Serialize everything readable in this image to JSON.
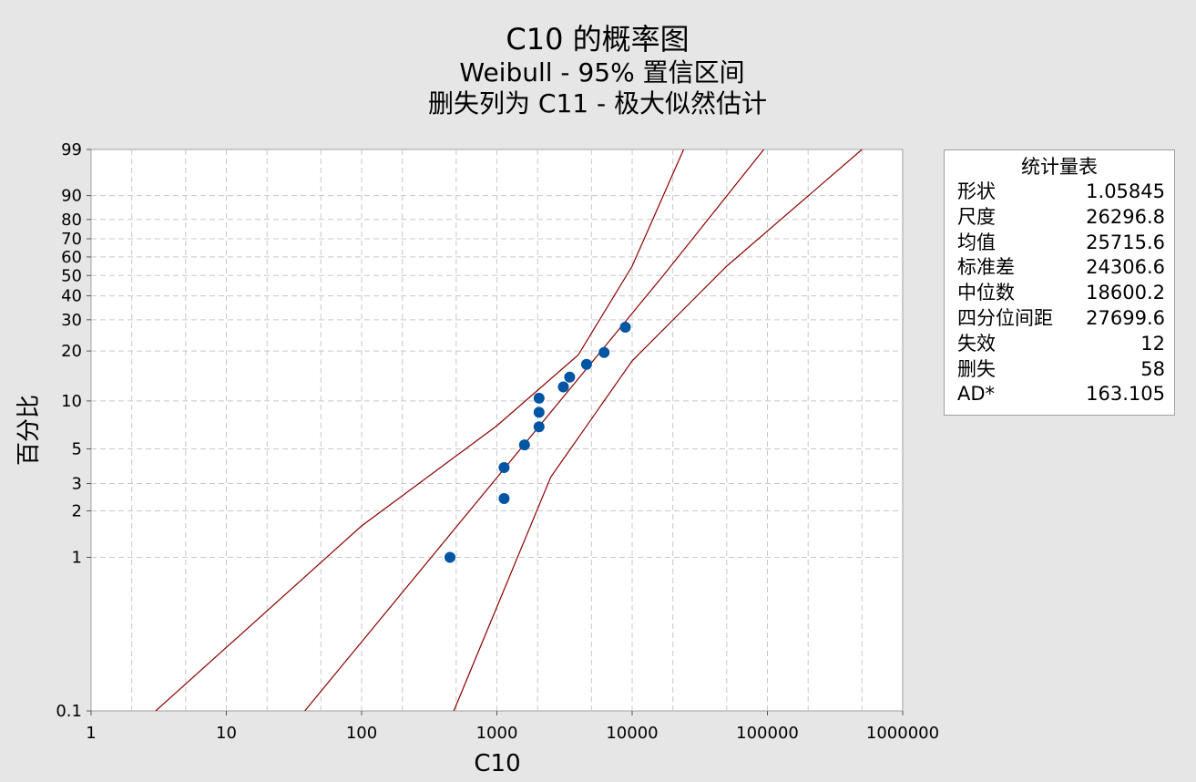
{
  "chart_data": {
    "type": "scatter",
    "title": "C10 的概率图",
    "subtitle1": "Weibull - 95% 置信区间",
    "subtitle2": "删失列为 C11 - 极大似然估计",
    "xlabel": "C10",
    "ylabel": "百分比",
    "x_scale": "log",
    "y_scale": "weibull",
    "xlim": [
      1,
      1000000
    ],
    "ylim": [
      0.1,
      99
    ],
    "x_ticks": [
      "1",
      "10",
      "100",
      "1000",
      "10000",
      "100000",
      "1000000"
    ],
    "y_ticks": [
      "0.1",
      "1",
      "2",
      "3",
      "5",
      "10",
      "20",
      "30",
      "40",
      "50",
      "60",
      "70",
      "80",
      "90",
      "99"
    ],
    "grid": true,
    "points": [
      {
        "x": 450,
        "y": 1.0
      },
      {
        "x": 1130,
        "y": 2.4
      },
      {
        "x": 1130,
        "y": 3.8
      },
      {
        "x": 1600,
        "y": 5.3
      },
      {
        "x": 2050,
        "y": 6.9
      },
      {
        "x": 2050,
        "y": 8.5
      },
      {
        "x": 2050,
        "y": 10.4
      },
      {
        "x": 3100,
        "y": 12.2
      },
      {
        "x": 3450,
        "y": 14.0
      },
      {
        "x": 4600,
        "y": 16.7
      },
      {
        "x": 6200,
        "y": 19.6
      },
      {
        "x": 8900,
        "y": 27.3
      }
    ],
    "fit_line": [
      {
        "x": 38,
        "y": 0.1
      },
      {
        "x": 17000,
        "y": 50
      },
      {
        "x": 94000,
        "y": 99
      }
    ],
    "ci_upper": [
      {
        "x": 3,
        "y": 0.1
      },
      {
        "x": 100,
        "y": 1.6
      },
      {
        "x": 1000,
        "y": 7.0
      },
      {
        "x": 4000,
        "y": 19
      },
      {
        "x": 10000,
        "y": 55
      },
      {
        "x": 24000,
        "y": 99
      }
    ],
    "ci_lower": [
      {
        "x": 480,
        "y": 0.1
      },
      {
        "x": 2500,
        "y": 3.3
      },
      {
        "x": 10000,
        "y": 17.5
      },
      {
        "x": 50000,
        "y": 55
      },
      {
        "x": 500000,
        "y": 99
      }
    ],
    "colors": {
      "points": "#0055a5",
      "lines": "#8b0000",
      "grid": "#c8c8c8",
      "plot_bg": "#ffffff",
      "page_bg": "#e6e6e6"
    }
  },
  "stats": {
    "title": "统计量表",
    "rows": [
      {
        "label": "形状",
        "value": "1.05845"
      },
      {
        "label": "尺度",
        "value": "26296.8"
      },
      {
        "label": "均值",
        "value": "25715.6"
      },
      {
        "label": "标准差",
        "value": "24306.6"
      },
      {
        "label": "中位数",
        "value": "18600.2"
      },
      {
        "label": "四分位间距",
        "value": "27699.6"
      },
      {
        "label": "失效",
        "value": "12"
      },
      {
        "label": "删失",
        "value": "58"
      },
      {
        "label": "AD*",
        "value": "163.105"
      }
    ]
  }
}
